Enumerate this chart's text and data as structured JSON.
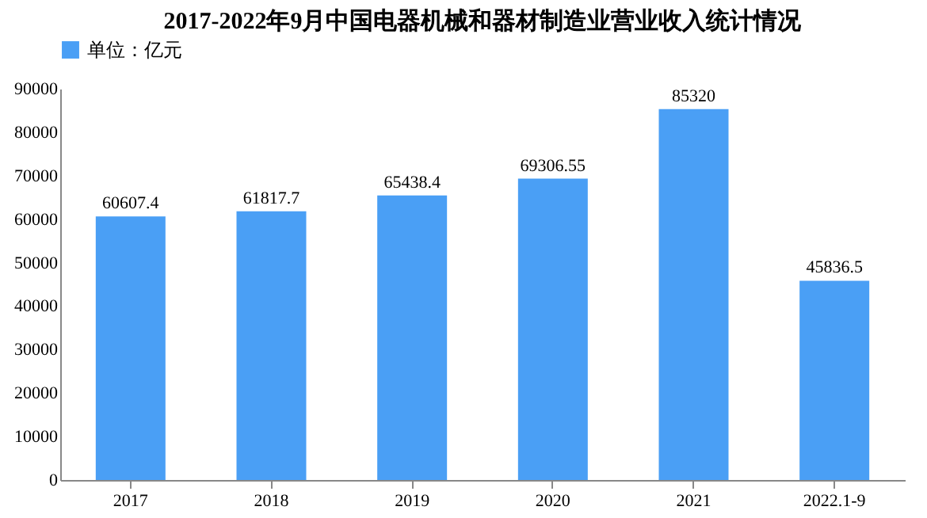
{
  "chart_data": {
    "type": "bar",
    "title": "2017-2022年9月中国电器机械和器材制造业营业收入统计情况",
    "categories": [
      "2017",
      "2018",
      "2019",
      "2020",
      "2021",
      "2022.1-9"
    ],
    "series": [
      {
        "name": "单位：亿元",
        "color": "#4a9ff5",
        "values": [
          60607.4,
          61817.7,
          65438.4,
          69306.55,
          85320,
          45836.5
        ]
      }
    ],
    "ylim": [
      0,
      90000
    ],
    "yticks": [
      0,
      10000,
      20000,
      30000,
      40000,
      50000,
      60000,
      70000,
      80000,
      90000
    ],
    "data_labels": true,
    "grid": false,
    "legend": "top"
  }
}
